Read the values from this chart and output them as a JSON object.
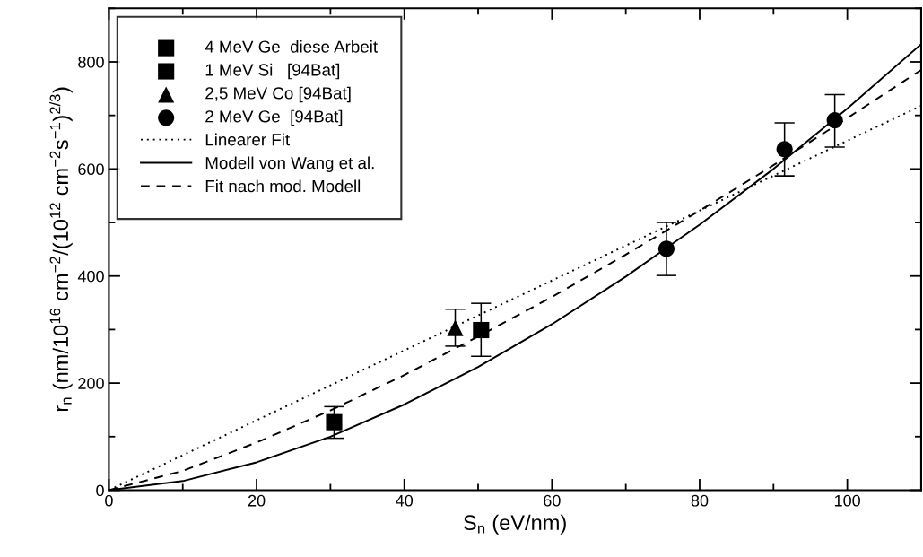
{
  "chart_data": {
    "type": "scatter",
    "xlabel": "S$_{n}$ (eV/nm)",
    "ylabel": "r$_{n}$ (nm/10$^{16}$ cm$^{−2}$/(10$^{12}$ cm$^{−2}$s$^{−1}$)$^{2/3}$)",
    "xlim": [
      0,
      110
    ],
    "ylim": [
      0,
      900
    ],
    "xticks": [
      0,
      20,
      40,
      60,
      80,
      100
    ],
    "yticks": [
      0,
      200,
      400,
      600,
      800
    ],
    "grid": false,
    "legend": "top left",
    "series": [
      {
        "name": "4 MeV Ge  diese Arbeit",
        "marker": "square",
        "color": "#000000",
        "x": [
          30.5
        ],
        "values": [
          127
        ],
        "errors": [
          [
            97,
            156
          ]
        ]
      },
      {
        "name": "1 MeV Si   [94Bat]",
        "marker": "square",
        "color": "#000000",
        "x": [
          50.4
        ],
        "values": [
          299
        ],
        "errors": [
          [
            250,
            349
          ]
        ]
      },
      {
        "name": "2,5 MeV Co [94Bat]",
        "marker": "triangle",
        "color": "#000000",
        "x": [
          46.9
        ],
        "values": [
          303
        ],
        "errors": [
          [
            269,
            338
          ]
        ]
      },
      {
        "name": "2 MeV Ge  [94Bat]",
        "marker": "circle",
        "color": "#000000",
        "x": [
          75.5,
          91.5,
          98.3
        ],
        "values": [
          451,
          637,
          691
        ],
        "errors": [
          [
            401,
            500
          ],
          [
            587,
            686
          ],
          [
            641,
            739
          ]
        ]
      },
      {
        "name": "Linearer Fit",
        "type": "line",
        "line_style": "dotted",
        "color": "#000000",
        "x": [
          0,
          110
        ],
        "values": [
          0,
          718
        ]
      },
      {
        "name": "Modell von Wang et al.",
        "type": "line",
        "line_style": "solid",
        "color": "#000000",
        "x": [
          0,
          10,
          20,
          30,
          40,
          50,
          60,
          70,
          80,
          90,
          100,
          110
        ],
        "values": [
          0,
          17,
          52,
          100,
          160,
          230,
          310,
          399,
          496,
          600,
          713,
          833
        ]
      },
      {
        "name": "Fit nach mod. Modell",
        "type": "line",
        "line_style": "dashed",
        "color": "#000000",
        "x": [
          0,
          10,
          20,
          30,
          40,
          50,
          60,
          70,
          80,
          90,
          100,
          110
        ],
        "values": [
          0,
          36,
          89,
          149,
          215,
          287,
          361,
          440,
          522,
          607,
          695,
          785
        ]
      }
    ]
  }
}
